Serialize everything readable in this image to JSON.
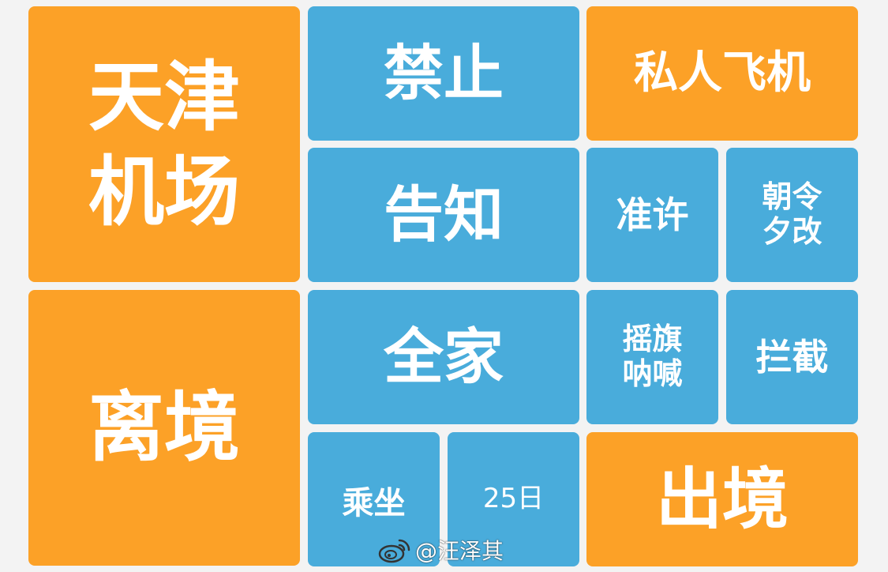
{
  "tiles": {
    "tianjin_airport": "天津\n机场",
    "forbid": "禁止",
    "private_plane": "私人飞机",
    "notify": "告知",
    "permit": "准许",
    "inconsistent": "朝令\n夕改",
    "leave_country": "离境",
    "whole_family": "全家",
    "wave_flag": "摇旗\n呐喊",
    "intercept": "拦截",
    "ride": "乘坐",
    "date": "25日",
    "exit_country": "出境"
  },
  "watermark": {
    "icon": "weibo-logo-icon",
    "text": "@汪泽其"
  },
  "colors": {
    "orange": "#fca127",
    "blue": "#49acdb",
    "background": "#f3f3f3"
  }
}
